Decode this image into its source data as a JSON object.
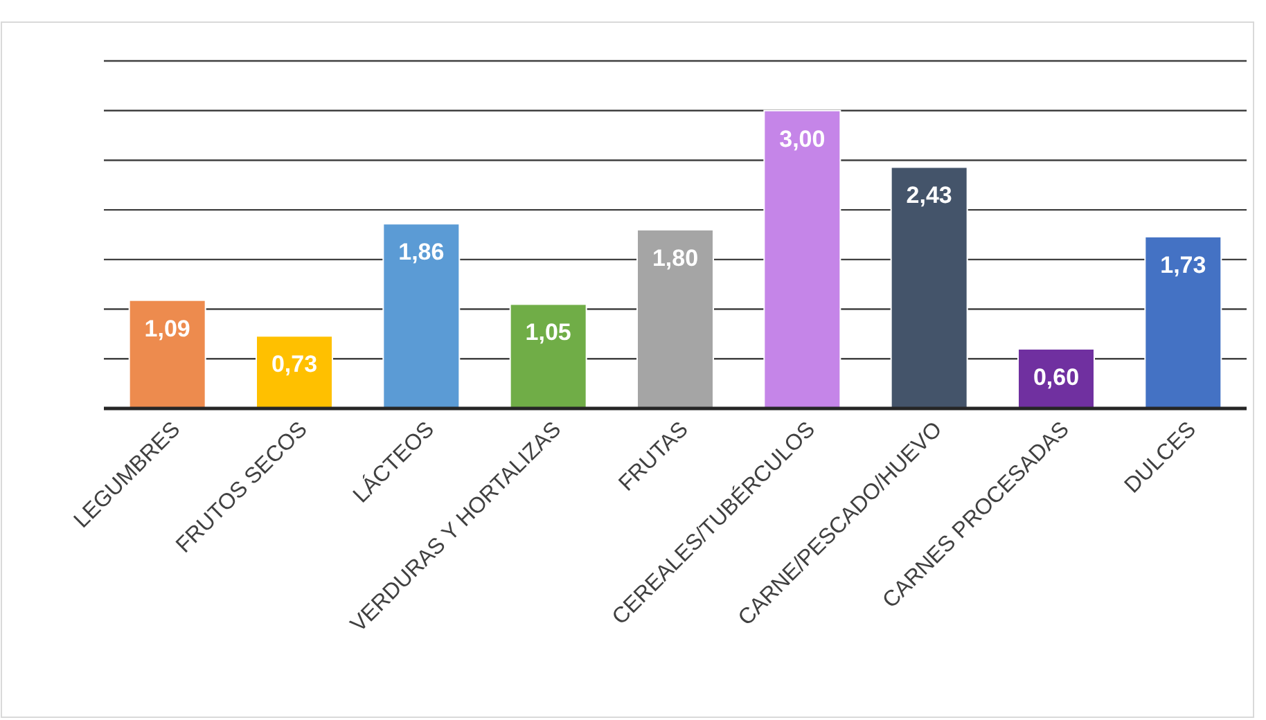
{
  "chart_data": {
    "type": "bar",
    "categories": [
      "LEGUMBRES",
      "FRUTOS SECOS",
      "LÁCTEOS",
      "VERDURAS Y HORTALIZAS",
      "FRUTAS",
      "CEREALES/TUBÉRCULOS",
      "CARNE/PESCADO/HUEVO",
      "CARNES PROCESADAS",
      "DULCES"
    ],
    "values": [
      1.09,
      0.73,
      1.86,
      1.05,
      1.8,
      3.0,
      2.43,
      0.6,
      1.73
    ],
    "value_labels": [
      "1,09",
      "0,73",
      "1,86",
      "1,05",
      "1,80",
      "3,00",
      "2,43",
      "0,60",
      "1,73"
    ],
    "colors": [
      "#ed8b4e",
      "#ffc000",
      "#5b9bd5",
      "#70ad47",
      "#a5a5a5",
      "#c585e8",
      "#44546a",
      "#7030a0",
      "#4472c4"
    ],
    "ylim": [
      0,
      3.5
    ],
    "yticks": [
      {
        "value": 0,
        "label": null
      },
      {
        "value": 0.5,
        "label": null
      },
      {
        "value": 1,
        "label": null
      },
      {
        "value": 1.5,
        "label": null
      },
      {
        "value": 2,
        "label": null
      },
      {
        "value": 2.5,
        "label": null
      },
      {
        "value": 3,
        "label": null
      },
      {
        "value": 3.5,
        "label": null
      }
    ],
    "grid": "y",
    "tick_labels": "x"
  }
}
